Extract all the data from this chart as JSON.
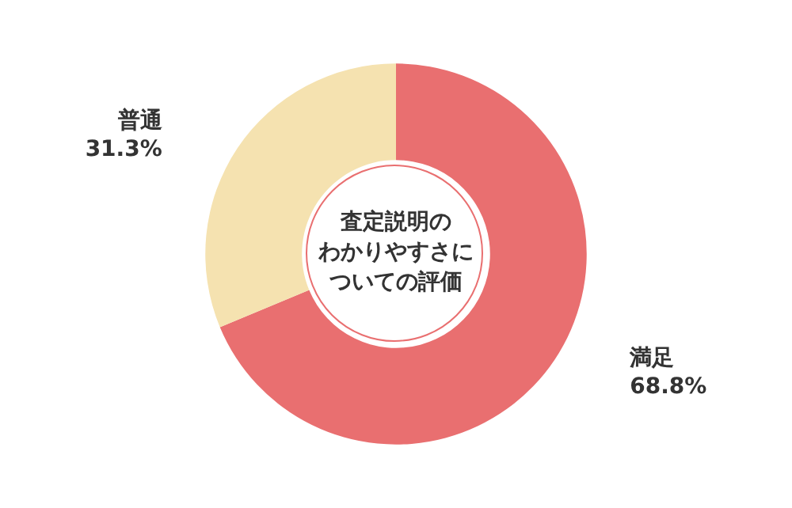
{
  "chart_data": {
    "type": "donut",
    "title": "査定説明のわかりやすさについての評価",
    "categories": [
      "満足",
      "普通"
    ],
    "values": [
      68.8,
      31.3
    ],
    "colors": [
      "#e96f70",
      "#f5e2b0"
    ],
    "value_labels": [
      "68.8%",
      "31.3%"
    ],
    "legend": false
  }
}
